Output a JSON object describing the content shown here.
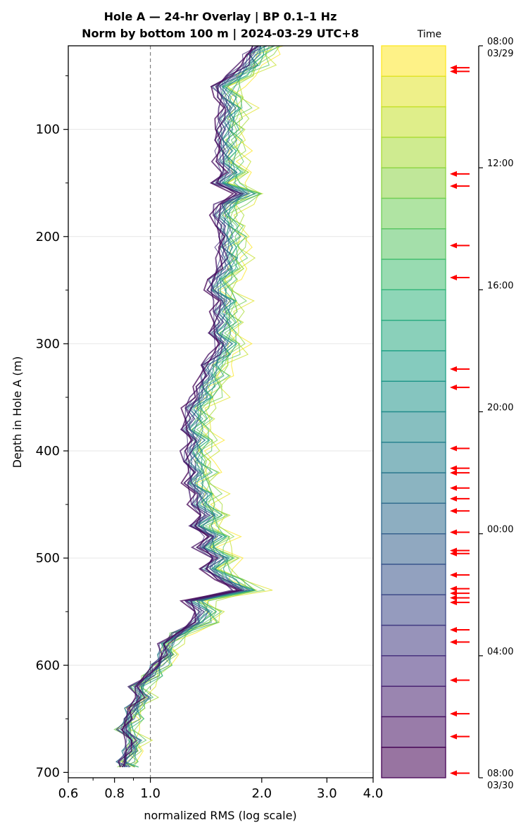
{
  "chart_data": {
    "type": "line",
    "title": "Hole A — 24-hr Overlay  |  BP 0.1–1 Hz",
    "subtitle": "Norm by bottom 100 m  |  2024-03-29 UTC+8",
    "xlabel": "normalized RMS  (log scale)",
    "ylabel": "Depth in Hole A (m)",
    "x_scale": "log",
    "xlim": [
      0.6,
      4.0
    ],
    "ylim": [
      705,
      22
    ],
    "y_inverted": true,
    "x_ticks": [
      0.6,
      0.8,
      1.0,
      2.0,
      3.0,
      4.0
    ],
    "x_tick_labels": [
      "0.6",
      "0.8",
      "1.0",
      "2.0",
      "3.0",
      "4.0"
    ],
    "y_ticks": [
      100,
      200,
      300,
      400,
      500,
      600,
      700
    ],
    "y_tick_labels": [
      "100",
      "200",
      "300",
      "400",
      "500",
      "600",
      "700"
    ],
    "grid": "horizontal",
    "reference_line_x": 1.0,
    "depths": [
      22,
      30,
      40,
      50,
      60,
      70,
      80,
      90,
      100,
      110,
      120,
      130,
      140,
      150,
      160,
      170,
      180,
      190,
      200,
      210,
      220,
      230,
      240,
      250,
      260,
      270,
      280,
      290,
      300,
      310,
      320,
      330,
      340,
      350,
      360,
      370,
      380,
      390,
      400,
      410,
      420,
      430,
      440,
      450,
      460,
      470,
      480,
      490,
      500,
      510,
      520,
      530,
      540,
      550,
      560,
      570,
      580,
      590,
      600,
      610,
      620,
      630,
      640,
      650,
      660,
      670,
      680,
      690,
      695
    ],
    "profile_median": [
      2.0,
      1.9,
      1.85,
      1.7,
      1.55,
      1.6,
      1.65,
      1.6,
      1.6,
      1.58,
      1.6,
      1.58,
      1.65,
      1.55,
      1.8,
      1.6,
      1.55,
      1.6,
      1.62,
      1.6,
      1.62,
      1.6,
      1.52,
      1.5,
      1.6,
      1.55,
      1.58,
      1.52,
      1.6,
      1.55,
      1.45,
      1.45,
      1.4,
      1.38,
      1.3,
      1.32,
      1.28,
      1.35,
      1.3,
      1.3,
      1.35,
      1.3,
      1.38,
      1.35,
      1.45,
      1.35,
      1.5,
      1.4,
      1.55,
      1.45,
      1.6,
      1.8,
      1.3,
      1.4,
      1.35,
      1.2,
      1.1,
      1.1,
      1.05,
      1.0,
      0.92,
      0.95,
      0.9,
      0.88,
      0.85,
      0.9,
      0.88,
      0.85,
      0.86
    ],
    "series_count": 24,
    "series_colors_scheme": "viridis",
    "colorbar": {
      "label": "Time",
      "tick_labels": [
        {
          "hour": 0,
          "line1": "08:00",
          "line2": "03/29"
        },
        {
          "hour": 4,
          "line1": "12:00",
          "line2": ""
        },
        {
          "hour": 8,
          "line1": "16:00",
          "line2": ""
        },
        {
          "hour": 12,
          "line1": "20:00",
          "line2": ""
        },
        {
          "hour": 16,
          "line1": "00:00",
          "line2": ""
        },
        {
          "hour": 20,
          "line1": "04:00",
          "line2": ""
        },
        {
          "hour": 24,
          "line1": "08:00",
          "line2": "03/30"
        }
      ],
      "event_markers_hours": [
        0.72,
        0.84,
        4.2,
        4.6,
        6.55,
        7.6,
        10.6,
        11.2,
        13.2,
        13.85,
        14.0,
        14.5,
        14.85,
        15.25,
        15.95,
        16.55,
        16.65,
        17.35,
        17.8,
        17.95,
        18.1,
        18.25,
        19.15,
        19.55,
        20.8,
        21.9,
        22.65,
        23.85
      ],
      "marker_color": "#ff0000"
    }
  }
}
